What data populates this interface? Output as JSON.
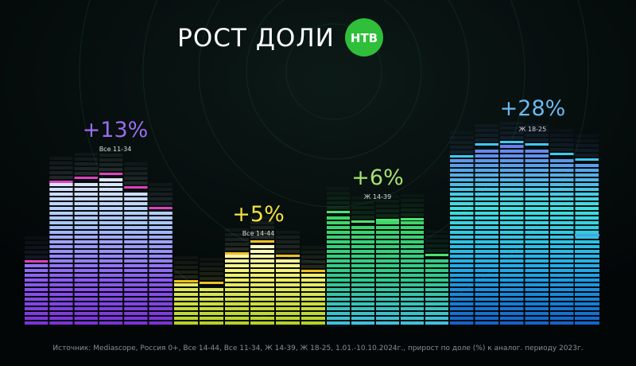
{
  "header": {
    "title": "РОСТ ДОЛИ",
    "logo": "НТВ"
  },
  "groups": [
    {
      "change": "+13%",
      "audience": "Все 11-34"
    },
    {
      "change": "+5%",
      "audience": "Все 14-44"
    },
    {
      "change": "+6%",
      "audience": "Ж 14-39"
    },
    {
      "change": "+28%",
      "audience": "Ж 18-25"
    }
  ],
  "footer": {
    "source": "Источник: Mediascope, Россия 0+, Все 14-44, Все 11-34, Ж 14-39, Ж 18-25, 1.01.-10.10.2024г., прирост по доле (%) к аналог. периоду 2023г."
  }
}
